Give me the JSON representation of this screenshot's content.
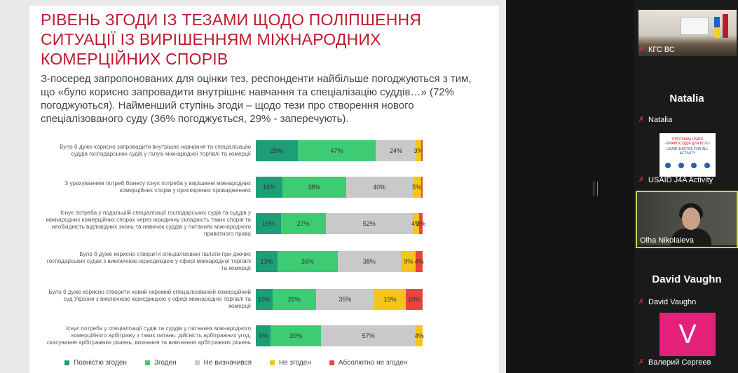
{
  "slide": {
    "title": "РІВЕНЬ ЗГОДИ ІЗ ТЕЗАМИ ЩОДО ПОЛІПШЕННЯ СИТУАЦІЇ ІЗ ВИРІШЕННЯМ МІЖНАРОДНИХ КОМЕРЦІЙНИХ СПОРІВ",
    "subtitle": "З-посеред запропонованих для оцінки тез, респонденти найбільше погоджуються з тим, що «було корисно запровадити внутрішнє навчання та спеціалізацію суддів…» (72% погоджуються). Найменший ступінь згоди – щодо тези про створення нового спеціалізованого суду (36% погоджується, 29% - заперечують)."
  },
  "chart_data": {
    "type": "bar",
    "stacked": true,
    "orientation": "horizontal",
    "categories": [
      "Було б дуже корисно запровадити внутрішнє навчання та спеціалізацію суддів господарських судів у галузі міжнародної торгівлі та комерції",
      "З урахуванням потреб бізнесу існує потреба у вирішенні міжнародних комерційних спорів у прискорених провадженнях",
      "Існує потреба у подальшій спеціалізації господарських судів та суддів у міжнародних комерційних спорах через юридичну складність таких спорів та необхідність відповідних знань та навичок суддів у питаннях міжнародного приватного права",
      "Було б дуже корисно створити спеціалізовані палати при діючих господарських судах з виключною юрисдикцією у сфері міжнародної торгівлі та комерції",
      "Було б дуже корисно створити новий окремий спеціалізований комерційний суд України з виключною юрисдикцією у сфері міжнародної торгівлі та комерції",
      "Існує потреба у спеціалізації судів та суддів у питаннях міжнародного комерційного арбітражу з таких питань: дійсність арбітражних угод, скасування арбітражних рішень, визнання та виконання арбітражних рішень"
    ],
    "series": [
      {
        "name": "Повністю згоден",
        "color": "#1e9e76",
        "values": [
          25,
          16,
          15,
          13,
          10,
          9
        ],
        "labels": [
          "25%",
          "16%",
          "15%",
          "13%",
          "10%",
          "9%"
        ]
      },
      {
        "name": "Згоден",
        "color": "#3dcc74",
        "values": [
          47,
          38,
          27,
          36,
          26,
          30
        ],
        "labels": [
          "47%",
          "38%",
          "27%",
          "36%",
          "26%",
          "30%"
        ]
      },
      {
        "name": "Не визначився",
        "color": "#c9c9c9",
        "values": [
          24,
          40,
          52,
          38,
          35,
          57
        ],
        "labels": [
          "24%",
          "40%",
          "52%",
          "38%",
          "35%",
          "57%"
        ]
      },
      {
        "name": "Не згоден",
        "color": "#f5c518",
        "values": [
          3,
          5,
          4,
          9,
          19,
          4
        ],
        "labels": [
          "3%",
          "5%",
          "4%",
          "9%",
          "19%",
          "4%"
        ]
      },
      {
        "name": "Абсолютно не згоден",
        "color": "#e8453c",
        "values": [
          1,
          1,
          2,
          4,
          10,
          0
        ],
        "labels": [
          "",
          "",
          "2%",
          "4%",
          "10%",
          ""
        ]
      }
    ],
    "legend": "bottom"
  },
  "participants": [
    {
      "name": "КГС ВС",
      "muted": true
    },
    {
      "name": "Natalia",
      "muted": true
    },
    {
      "name": "USAID J4A Activity",
      "muted": true,
      "video_text_1": "ПРОГРАМА USAID «ПРАВОСУДДЯ ДЛЯ ВСІХ»",
      "video_text_2": "USAID JUSTICE FOR ALL ACTIVITY"
    },
    {
      "name": "Olha Nikolaieva",
      "muted": false
    },
    {
      "name": "David Vaughn",
      "muted": true
    },
    {
      "name": "Валерий Сергеев",
      "muted": true,
      "avatar_letter": "V"
    }
  ],
  "icons": {
    "muted_mic": "mic-muted-icon"
  }
}
